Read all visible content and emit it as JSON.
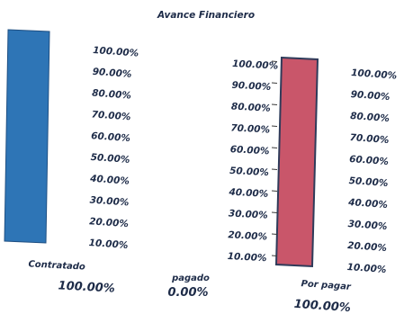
{
  "chart_data": {
    "type": "bar",
    "title": "Avance Financiero",
    "y_ticks": [
      "100.00%",
      "90.00%",
      "80.00%",
      "70.00%",
      "60.00%",
      "50.00%",
      "40.00%",
      "30.00%",
      "20.00%",
      "10.00%"
    ],
    "ylim": [
      0,
      100
    ],
    "bars": [
      {
        "category": "Contratado",
        "value": 100.0,
        "value_label": "100.00%",
        "color": "#2e75b6"
      },
      {
        "category": "pagado",
        "value": 0.0,
        "value_label": "0.00%",
        "color": "#2e75b6"
      },
      {
        "category": "Por pagar",
        "value": 100.0,
        "value_label": "100.00%",
        "color": "#c9566a"
      }
    ],
    "legend": false,
    "grid": false
  }
}
